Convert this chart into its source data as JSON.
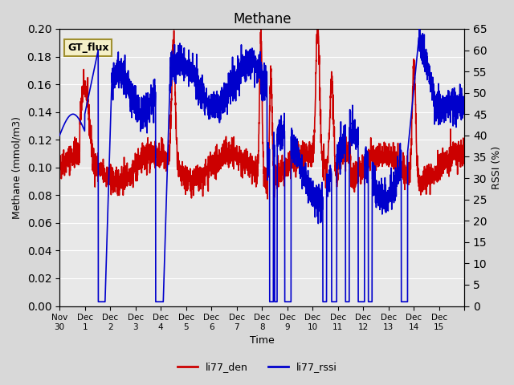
{
  "title": "Methane",
  "xlabel": "Time",
  "ylabel_left": "Methane (mmol/m3)",
  "ylabel_right": "RSSI (%)",
  "ylim_left": [
    0.0,
    0.2
  ],
  "ylim_right": [
    0,
    65
  ],
  "yticks_left": [
    0.0,
    0.02,
    0.04,
    0.06,
    0.08,
    0.1,
    0.12,
    0.14,
    0.16,
    0.18,
    0.2
  ],
  "yticks_right": [
    0,
    5,
    10,
    15,
    20,
    25,
    30,
    35,
    40,
    45,
    50,
    55,
    60,
    65
  ],
  "xtick_labels": [
    "Nov 30",
    "Dec 1",
    "Dec 2",
    "Dec 3",
    "Dec 4",
    "Dec 5",
    "Dec 6",
    "Dec 7",
    "Dec 8",
    "Dec 9",
    "Dec 10",
    "Dec 11",
    "Dec 12",
    "Dec 13",
    "Dec 14",
    "Dec 15"
  ],
  "legend_label": "GT_flux",
  "line1_label": "li77_den",
  "line2_label": "li77_rssi",
  "line1_color": "#cc0000",
  "line2_color": "#0000cc",
  "background_color": "#d8d8d8",
  "plot_bg_color": "#e8e8e8",
  "legend_box_color": "#f5f0c8",
  "legend_box_edge": "#a09030",
  "line_width": 1.2
}
